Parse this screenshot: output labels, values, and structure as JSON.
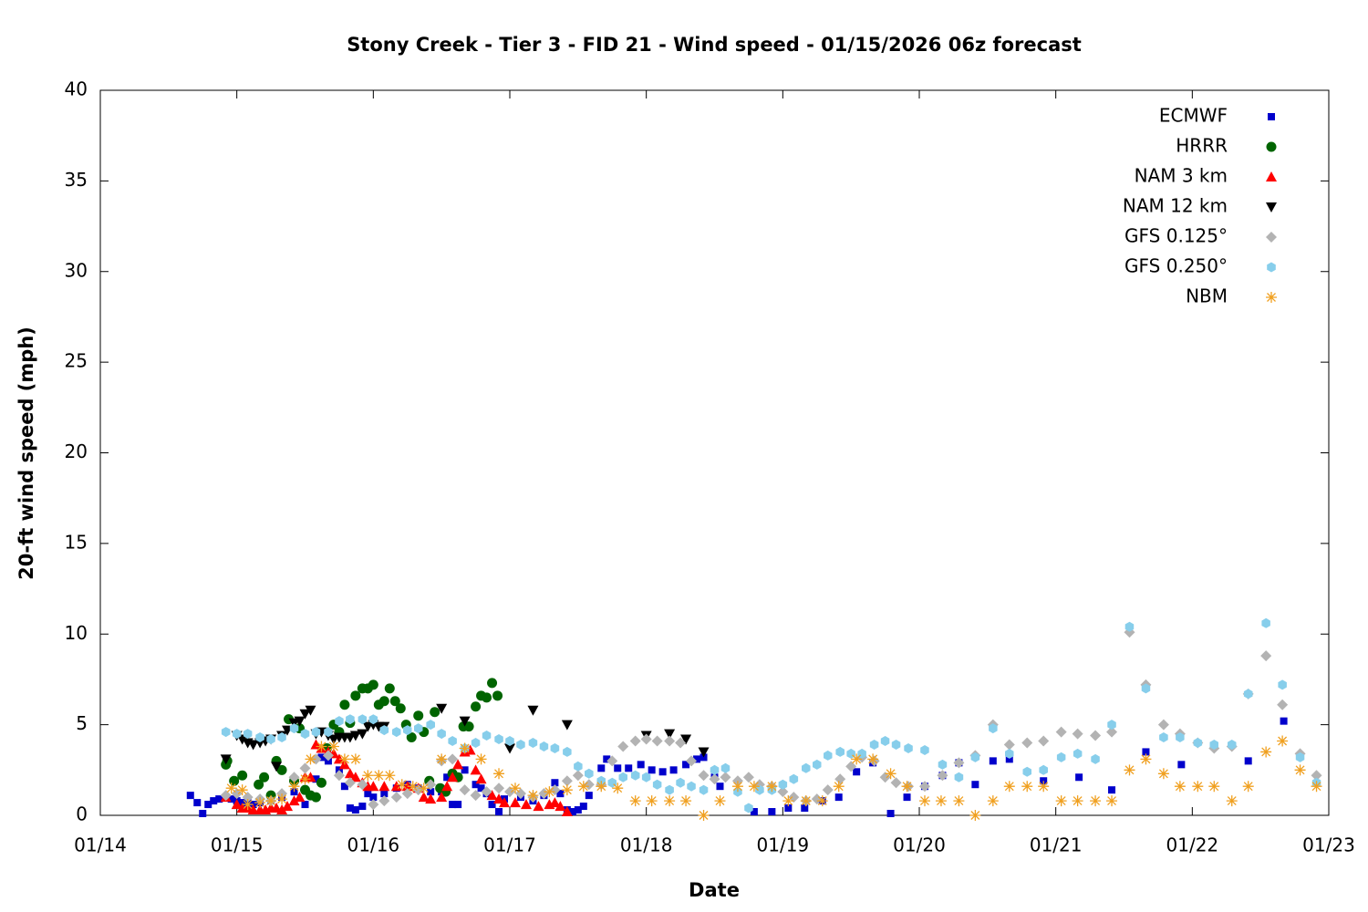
{
  "chart_data": {
    "type": "scatter",
    "title": "Stony Creek - Tier 3 - FID 21 - Wind speed - 01/15/2026 06z forecast",
    "x_label": "Date",
    "y_label": "20-ft wind speed (mph)",
    "xlim": [
      14,
      23
    ],
    "xticks": [
      {
        "value": 14,
        "label": "01/14"
      },
      {
        "value": 15,
        "label": "01/15"
      },
      {
        "value": 16,
        "label": "01/16"
      },
      {
        "value": 17,
        "label": "01/17"
      },
      {
        "value": 18,
        "label": "01/18"
      },
      {
        "value": 19,
        "label": "01/19"
      },
      {
        "value": 20,
        "label": "01/20"
      },
      {
        "value": 21,
        "label": "01/21"
      },
      {
        "value": 22,
        "label": "01/22"
      },
      {
        "value": 23,
        "label": "01/23"
      }
    ],
    "ylim": [
      0,
      40
    ],
    "yticks": [
      0,
      5,
      10,
      15,
      20,
      25,
      30,
      35,
      40
    ],
    "legend": "top-right",
    "series": [
      {
        "name": "ECMWF",
        "color": "#0000cc",
        "marker": "square",
        "x": [
          14.66,
          14.71,
          14.75,
          14.79,
          14.83,
          14.87,
          14.92,
          14.96,
          15.0,
          15.04,
          15.08,
          15.12,
          15.17,
          15.25,
          15.33,
          15.42,
          15.5,
          15.58,
          15.62,
          15.67,
          15.75,
          15.79,
          15.83,
          15.87,
          15.92,
          15.96,
          16.0,
          16.08,
          16.17,
          16.25,
          16.33,
          16.42,
          16.5,
          16.54,
          16.58,
          16.62,
          16.67,
          16.75,
          16.79,
          16.83,
          16.87,
          16.92,
          16.96,
          17.08,
          17.17,
          17.25,
          17.33,
          17.37,
          17.42,
          17.46,
          17.5,
          17.54,
          17.58,
          17.67,
          17.71,
          17.79,
          17.87,
          17.96,
          18.04,
          18.12,
          18.2,
          18.29,
          18.37,
          18.42,
          18.5,
          18.54,
          18.79,
          18.92,
          19.04,
          19.16,
          19.29,
          19.41,
          19.54,
          19.66,
          19.79,
          19.91,
          20.04,
          20.17,
          20.29,
          20.41,
          20.54,
          20.66,
          20.91,
          21.17,
          21.41,
          21.66,
          21.92,
          22.16,
          22.41,
          22.67
        ],
        "values": [
          1.1,
          0.7,
          0.1,
          0.6,
          0.8,
          0.9,
          1.0,
          0.9,
          0.8,
          0.7,
          0.7,
          0.6,
          0.7,
          0.8,
          1.0,
          1.3,
          0.6,
          2.0,
          3.2,
          3.0,
          2.5,
          1.6,
          0.4,
          0.3,
          0.5,
          1.2,
          1.0,
          1.2,
          1.5,
          1.7,
          1.5,
          1.3,
          1.3,
          2.1,
          0.6,
          0.6,
          2.5,
          1.7,
          1.5,
          1.2,
          0.6,
          0.2,
          0.9,
          1.0,
          0.8,
          1.1,
          1.8,
          1.2,
          0.3,
          0.2,
          0.3,
          0.5,
          1.1,
          2.6,
          3.1,
          2.6,
          2.6,
          2.8,
          2.5,
          2.4,
          2.5,
          2.8,
          3.1,
          3.2,
          2.1,
          1.6,
          0.2,
          0.2,
          0.4,
          0.4,
          0.8,
          1.0,
          2.4,
          2.9,
          0.1,
          1.0,
          1.6,
          2.2,
          2.9,
          1.7,
          3.0,
          3.1,
          1.9,
          2.1,
          1.4,
          3.5,
          2.8,
          3.8,
          3.0,
          5.2
        ]
      },
      {
        "name": "HRRR",
        "color": "#006400",
        "marker": "circle",
        "x": [
          14.92,
          14.93,
          14.98,
          15.04,
          15.16,
          15.2,
          15.25,
          15.29,
          15.33,
          15.38,
          15.42,
          15.46,
          15.5,
          15.54,
          15.58,
          15.62,
          15.66,
          15.71,
          15.75,
          15.79,
          15.83,
          15.87,
          15.92,
          15.96,
          16.0,
          16.04,
          16.08,
          16.12,
          16.16,
          16.2,
          16.24,
          16.28,
          16.33,
          16.37,
          16.41,
          16.45,
          16.49,
          16.53,
          16.58,
          16.62,
          16.66,
          16.7,
          16.75,
          16.79,
          16.83,
          16.87,
          16.91
        ],
        "values": [
          2.8,
          3.0,
          1.9,
          2.2,
          1.7,
          2.1,
          1.1,
          3.0,
          2.5,
          5.3,
          1.9,
          4.8,
          1.4,
          1.1,
          1.0,
          1.8,
          3.7,
          5.0,
          4.6,
          6.1,
          5.1,
          6.6,
          7.0,
          7.0,
          7.2,
          6.1,
          6.3,
          7.0,
          6.3,
          5.9,
          5.0,
          4.3,
          5.5,
          4.6,
          1.9,
          5.7,
          1.5,
          1.3,
          2.3,
          2.1,
          4.9,
          4.9,
          6.0,
          6.6,
          6.5,
          7.3,
          6.6
        ]
      },
      {
        "name": "NAM 3 km",
        "color": "#ff0000",
        "marker": "triangle-up",
        "x": [
          14.92,
          15.0,
          15.04,
          15.08,
          15.12,
          15.17,
          15.21,
          15.25,
          15.29,
          15.33,
          15.37,
          15.42,
          15.46,
          15.5,
          15.54,
          15.58,
          15.62,
          15.67,
          15.71,
          15.75,
          15.79,
          15.83,
          15.87,
          15.92,
          15.96,
          16.0,
          16.08,
          16.17,
          16.25,
          16.33,
          16.37,
          16.42,
          16.5,
          16.54,
          16.58,
          16.62,
          16.67,
          16.71,
          16.75,
          16.79,
          16.87,
          16.92,
          16.96,
          17.04,
          17.12,
          17.21,
          17.29,
          17.33,
          17.37,
          17.42
        ],
        "values": [
          1.0,
          0.6,
          0.4,
          0.4,
          0.3,
          0.3,
          0.3,
          0.4,
          0.4,
          0.3,
          0.5,
          0.8,
          1.0,
          2.1,
          2.1,
          3.9,
          3.7,
          3.5,
          3.4,
          3.1,
          2.8,
          2.3,
          2.1,
          1.8,
          1.6,
          1.6,
          1.6,
          1.6,
          1.6,
          1.5,
          1.0,
          0.9,
          1.0,
          1.6,
          2.1,
          2.8,
          3.5,
          3.6,
          2.5,
          2.0,
          1.1,
          0.9,
          0.7,
          0.7,
          0.6,
          0.5,
          0.6,
          0.7,
          0.5,
          0.2
        ]
      },
      {
        "name": "NAM 12 km",
        "color": "#000000",
        "marker": "triangle-down",
        "x": [
          14.92,
          15.0,
          15.04,
          15.08,
          15.12,
          15.17,
          15.21,
          15.25,
          15.29,
          15.33,
          15.37,
          15.42,
          15.46,
          15.5,
          15.54,
          15.58,
          15.62,
          15.67,
          15.71,
          15.75,
          15.79,
          15.83,
          15.87,
          15.92,
          15.96,
          16.0,
          16.04,
          16.08,
          16.5,
          16.67,
          17.0,
          17.17,
          17.42,
          18.0,
          18.17,
          18.29,
          18.42
        ],
        "values": [
          3.1,
          4.4,
          4.2,
          4.0,
          3.9,
          4.0,
          4.1,
          4.2,
          2.7,
          4.4,
          4.7,
          5.1,
          5.2,
          5.6,
          5.8,
          4.5,
          4.6,
          4.4,
          4.2,
          4.3,
          4.3,
          4.3,
          4.4,
          4.5,
          4.9,
          5.0,
          4.9,
          4.9,
          5.9,
          5.2,
          3.7,
          5.8,
          5.0,
          4.4,
          4.5,
          4.2,
          3.5
        ]
      },
      {
        "name": "GFS 0.125°",
        "color": "#b3b3b3",
        "marker": "diamond",
        "x": [
          14.92,
          15.0,
          15.08,
          15.17,
          15.25,
          15.33,
          15.42,
          15.5,
          15.58,
          15.67,
          15.75,
          15.83,
          15.92,
          16.0,
          16.08,
          16.17,
          16.25,
          16.33,
          16.42,
          16.5,
          16.58,
          16.67,
          16.75,
          16.83,
          16.92,
          17.0,
          17.08,
          17.17,
          17.25,
          17.33,
          17.42,
          17.5,
          17.58,
          17.67,
          17.75,
          17.83,
          17.92,
          18.0,
          18.08,
          18.17,
          18.25,
          18.33,
          18.42,
          18.5,
          18.58,
          18.67,
          18.75,
          18.83,
          18.92,
          19.0,
          19.08,
          19.17,
          19.25,
          19.33,
          19.42,
          19.5,
          19.58,
          19.67,
          19.75,
          19.83,
          19.92,
          20.04,
          20.17,
          20.29,
          20.41,
          20.54,
          20.66,
          20.79,
          20.91,
          21.04,
          21.16,
          21.29,
          21.41,
          21.54,
          21.66,
          21.79,
          21.91,
          22.04,
          22.16,
          22.29,
          22.41,
          22.54,
          22.66,
          22.79,
          22.91
        ],
        "values": [
          1.1,
          1.2,
          1.0,
          0.9,
          0.8,
          1.2,
          2.1,
          2.6,
          3.1,
          3.3,
          2.2,
          1.8,
          1.7,
          0.6,
          0.8,
          1.0,
          1.2,
          1.4,
          1.7,
          3.0,
          3.1,
          1.4,
          1.1,
          1.3,
          1.5,
          1.3,
          1.2,
          1.0,
          1.2,
          1.4,
          1.9,
          2.2,
          1.7,
          1.7,
          3.0,
          3.8,
          4.1,
          4.2,
          4.1,
          4.1,
          4.0,
          3.0,
          2.2,
          2.0,
          2.1,
          1.9,
          2.1,
          1.7,
          1.6,
          1.3,
          1.0,
          0.8,
          0.9,
          1.4,
          2.0,
          2.7,
          3.2,
          3.0,
          2.1,
          1.8,
          1.6,
          1.6,
          2.2,
          2.9,
          3.3,
          5.0,
          3.9,
          4.0,
          4.1,
          4.6,
          4.5,
          4.4,
          4.6,
          10.1,
          7.2,
          5.0,
          4.5,
          4.0,
          3.7,
          3.8,
          6.7,
          8.8,
          6.1,
          3.4,
          2.2
        ]
      },
      {
        "name": "GFS 0.250°",
        "color": "#87ceeb",
        "marker": "hexagon",
        "x": [
          14.92,
          15.0,
          15.08,
          15.17,
          15.25,
          15.33,
          15.42,
          15.5,
          15.58,
          15.67,
          15.75,
          15.83,
          15.92,
          16.0,
          16.08,
          16.17,
          16.25,
          16.33,
          16.42,
          16.5,
          16.58,
          16.67,
          16.75,
          16.83,
          16.92,
          17.0,
          17.08,
          17.17,
          17.25,
          17.33,
          17.42,
          17.5,
          17.58,
          17.67,
          17.75,
          17.83,
          17.92,
          18.0,
          18.08,
          18.17,
          18.25,
          18.33,
          18.42,
          18.5,
          18.58,
          18.67,
          18.75,
          18.83,
          18.92,
          19.0,
          19.08,
          19.17,
          19.25,
          19.33,
          19.42,
          19.5,
          19.58,
          19.67,
          19.75,
          19.83,
          19.92,
          20.04,
          20.17,
          20.29,
          20.41,
          20.54,
          20.66,
          20.79,
          20.91,
          21.04,
          21.16,
          21.29,
          21.41,
          21.54,
          21.66,
          21.79,
          21.91,
          22.04,
          22.16,
          22.29,
          22.41,
          22.54,
          22.66,
          22.79,
          22.91
        ],
        "values": [
          4.6,
          4.5,
          4.5,
          4.3,
          4.2,
          4.3,
          4.8,
          4.5,
          4.6,
          4.6,
          5.2,
          5.3,
          5.3,
          5.3,
          4.7,
          4.6,
          4.7,
          4.8,
          5.0,
          4.5,
          4.1,
          3.7,
          4.0,
          4.4,
          4.2,
          4.1,
          3.9,
          4.0,
          3.8,
          3.7,
          3.5,
          2.7,
          2.3,
          1.9,
          1.8,
          2.1,
          2.2,
          2.1,
          1.7,
          1.4,
          1.8,
          1.6,
          1.4,
          2.5,
          2.6,
          1.3,
          0.4,
          1.4,
          1.4,
          1.7,
          2.0,
          2.6,
          2.8,
          3.3,
          3.5,
          3.4,
          3.4,
          3.9,
          4.1,
          3.9,
          3.7,
          3.6,
          2.8,
          2.1,
          3.2,
          4.8,
          3.4,
          2.4,
          2.5,
          3.2,
          3.4,
          3.1,
          5.0,
          10.4,
          7.0,
          4.3,
          4.3,
          4.0,
          3.9,
          3.9,
          6.7,
          10.6,
          7.2,
          3.2,
          1.8
        ]
      },
      {
        "name": "NBM",
        "color": "#f0a020",
        "marker": "asterisk",
        "x": [
          14.96,
          15.04,
          15.08,
          15.17,
          15.25,
          15.33,
          15.42,
          15.5,
          15.54,
          15.62,
          15.71,
          15.79,
          15.87,
          15.96,
          16.04,
          16.12,
          16.21,
          16.29,
          16.37,
          16.5,
          16.67,
          16.79,
          16.92,
          17.04,
          17.17,
          17.29,
          17.42,
          17.54,
          17.67,
          17.79,
          17.92,
          18.04,
          18.17,
          18.29,
          18.42,
          18.54,
          18.67,
          18.79,
          18.92,
          19.04,
          19.17,
          19.29,
          19.41,
          19.54,
          19.66,
          19.79,
          19.91,
          20.04,
          20.16,
          20.29,
          20.41,
          20.54,
          20.66,
          20.79,
          20.91,
          21.04,
          21.16,
          21.29,
          21.41,
          21.54,
          21.66,
          21.79,
          21.91,
          22.04,
          22.16,
          22.29,
          22.41,
          22.54,
          22.66,
          22.79,
          22.91
        ],
        "values": [
          1.5,
          1.4,
          0.6,
          0.7,
          0.8,
          0.9,
          1.6,
          2.0,
          3.1,
          3.8,
          3.8,
          3.1,
          3.1,
          2.2,
          2.2,
          2.2,
          1.7,
          1.6,
          1.5,
          3.1,
          3.7,
          3.1,
          2.3,
          1.5,
          1.1,
          1.3,
          1.4,
          1.6,
          1.6,
          1.5,
          0.8,
          0.8,
          0.8,
          0.8,
          0.0,
          0.8,
          1.6,
          1.6,
          1.6,
          0.8,
          0.8,
          0.8,
          1.6,
          3.1,
          3.1,
          2.3,
          1.6,
          0.8,
          0.8,
          0.8,
          0.0,
          0.8,
          1.6,
          1.6,
          1.6,
          0.8,
          0.8,
          0.8,
          0.8,
          2.5,
          3.1,
          2.3,
          1.6,
          1.6,
          1.6,
          0.8,
          1.6,
          3.5,
          4.1,
          2.5,
          1.6
        ]
      }
    ]
  }
}
